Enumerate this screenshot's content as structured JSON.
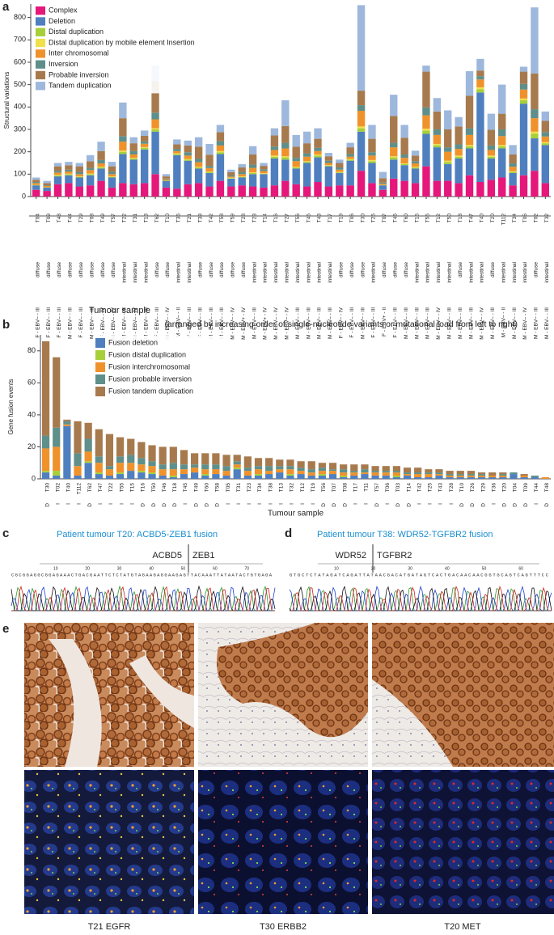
{
  "panel_labels": [
    "a",
    "b",
    "c",
    "d",
    "e"
  ],
  "chart_data": [
    {
      "type": "stacked-bar",
      "y_label": "Structural  variations",
      "x_label": "Tumour sample",
      "note": "(arranged by increasing order of single-nucleotide variants or mutational load from left to right)",
      "categories": [
        "T04",
        "T09",
        "T48",
        "T44",
        "T29",
        "T08",
        "T49",
        "T57",
        "T22",
        "T31",
        "T13",
        "T62",
        "T10",
        "T36",
        "T21",
        "T38",
        "T42",
        "T58",
        "T59",
        "T28",
        "T23",
        "T14",
        "T16",
        "T27",
        "T56",
        "T45",
        "T43",
        "T17",
        "T19",
        "T06",
        "T30",
        "T25",
        "T07",
        "T46",
        "T60",
        "T15",
        "T55",
        "T12",
        "T50",
        "T18",
        "T47",
        "T40",
        "T20",
        "T112",
        "T34",
        "T05",
        "T02",
        "T32"
      ],
      "histology": [
        "diffuse",
        "diffuse",
        "diffuse",
        "diffuse",
        "diffuse",
        "diffuse",
        "diffuse",
        "diffuse",
        "intestinal",
        "intestinal",
        "intestinal",
        "diffuse",
        "diffuse",
        "intestinal",
        "intestinal",
        "diffuse",
        "diffuse",
        "diffuse",
        "diffuse",
        "diffuse",
        "intestinal",
        "intestinal",
        "intestinal",
        "intestinal",
        "intestinal",
        "intestinal",
        "intestinal",
        "intestinal",
        "diffuse",
        "diffuse",
        "diffuse",
        "intestinal",
        "diffuse",
        "diffuse",
        "diffuse",
        "intestinal",
        "intestinal",
        "intestinal",
        "intestinal",
        "diffuse",
        "intestinal",
        "intestinal",
        "diffuse",
        "intestinal",
        "intestinal",
        "intestinal",
        "diffuse",
        "intestinal"
      ],
      "group": [
        "F - EBV– - III",
        "F - EBV– - III",
        "F - EBV– - III",
        "M - EBV– - III",
        "F - EBV– - III",
        "M - EBV– - III",
        "F - EBV– - IV",
        "M - EBV– - IV",
        "M - EBV– - III",
        "M - EBV– - IV",
        "M - EBV– - III",
        "F - EBV– - III",
        "M - EBV– - IV",
        "M - EBV– - II",
        "F - EBV– - III",
        "F - EBV– - III",
        "M - EBV– - III",
        "M - EBV– - III",
        "M - EBV– - IV",
        "M - EBV+ - IV",
        "M - EBV– - III",
        "M - EBV+ - IV",
        "M - EBV– - IV",
        "M - EBV– - IV",
        "M - EBV– - III",
        "M - EBV– - III",
        "M - EBV– - III",
        "M - EBV– - III",
        "F - EBV– - IV",
        "F - EBV– - III",
        "M - EBV– - III",
        "F - EBV– - III",
        "F - EBV+ - II",
        "F - EBV– - III",
        "M - EBV– - III",
        "M - EBV– - III",
        "M - EBV– - III",
        "M - EBV– - IV",
        "M - EBV– - III",
        "M - EBV– - III",
        "M - EBV– - III",
        "M - EBV– - IV",
        "M - EBV– - III",
        "M - EBV– - II",
        "M - EBV– - III",
        "M - EBV– - IV",
        "M - EBV– - III",
        "M - EBV– - III"
      ],
      "series": [
        {
          "name": "Complex",
          "color": "#e5177b",
          "values": [
            30,
            25,
            55,
            60,
            45,
            50,
            70,
            40,
            60,
            55,
            60,
            100,
            40,
            35,
            55,
            60,
            45,
            70,
            45,
            50,
            45,
            40,
            50,
            70,
            55,
            45,
            65,
            45,
            50,
            50,
            115,
            60,
            30,
            80,
            70,
            60,
            135,
            70,
            70,
            60,
            95,
            65,
            75,
            85,
            50,
            95,
            115,
            60
          ]
        },
        {
          "name": "Deletion",
          "color": "#4f7fbf",
          "values": [
            20,
            15,
            35,
            35,
            40,
            45,
            55,
            45,
            130,
            110,
            150,
            190,
            30,
            150,
            105,
            65,
            60,
            120,
            35,
            35,
            55,
            60,
            120,
            95,
            70,
            105,
            110,
            90,
            55,
            110,
            175,
            90,
            20,
            85,
            70,
            65,
            145,
            150,
            75,
            110,
            120,
            400,
            95,
            130,
            55,
            320,
            145,
            170
          ]
        },
        {
          "name": "Distal duplication",
          "color": "#a6cf3a",
          "values": [
            2,
            2,
            5,
            5,
            3,
            5,
            5,
            3,
            10,
            5,
            8,
            10,
            2,
            5,
            5,
            5,
            5,
            8,
            2,
            3,
            5,
            2,
            8,
            10,
            5,
            5,
            8,
            3,
            3,
            5,
            15,
            8,
            2,
            10,
            5,
            5,
            15,
            10,
            10,
            8,
            10,
            15,
            8,
            10,
            5,
            15,
            20,
            8
          ]
        },
        {
          "name": "Distal duplication by mobile element Insertion",
          "color": "#f0e04a",
          "values": [
            0,
            0,
            2,
            2,
            2,
            3,
            3,
            2,
            5,
            3,
            3,
            5,
            0,
            3,
            3,
            3,
            2,
            5,
            2,
            2,
            3,
            2,
            5,
            5,
            3,
            3,
            5,
            2,
            2,
            3,
            8,
            5,
            0,
            5,
            3,
            3,
            8,
            5,
            5,
            5,
            5,
            8,
            5,
            5,
            3,
            8,
            10,
            5
          ]
        },
        {
          "name": "Inter chromosomal",
          "color": "#f0922b",
          "values": [
            8,
            5,
            10,
            10,
            10,
            15,
            15,
            10,
            40,
            15,
            15,
            40,
            5,
            10,
            15,
            20,
            15,
            25,
            5,
            10,
            20,
            10,
            25,
            35,
            25,
            20,
            15,
            10,
            10,
            10,
            70,
            20,
            5,
            40,
            25,
            15,
            60,
            40,
            40,
            30,
            45,
            35,
            25,
            40,
            20,
            40,
            60,
            25
          ]
        },
        {
          "name": "Inversion",
          "color": "#5f8f8a",
          "values": [
            5,
            3,
            8,
            8,
            10,
            10,
            15,
            10,
            25,
            15,
            10,
            30,
            3,
            10,
            15,
            15,
            10,
            20,
            5,
            10,
            15,
            8,
            15,
            25,
            15,
            15,
            15,
            10,
            10,
            12,
            25,
            15,
            5,
            20,
            15,
            10,
            35,
            25,
            20,
            20,
            30,
            15,
            20,
            30,
            15,
            25,
            40,
            20
          ]
        },
        {
          "name": "Probable inversion",
          "color": "#a77a4e",
          "values": [
            10,
            10,
            20,
            20,
            25,
            30,
            40,
            25,
            80,
            35,
            25,
            140,
            10,
            20,
            30,
            55,
            50,
            40,
            15,
            20,
            45,
            15,
            50,
            75,
            50,
            45,
            40,
            20,
            20,
            30,
            65,
            60,
            20,
            120,
            75,
            25,
            160,
            80,
            80,
            80,
            145,
            25,
            70,
            70,
            40,
            55,
            160,
            50
          ]
        },
        {
          "name": "Tandem duplication",
          "color": "#9db8dc",
          "values": [
            10,
            10,
            15,
            15,
            15,
            27,
            42,
            20,
            70,
            27,
            24,
            70,
            10,
            22,
            22,
            42,
            48,
            32,
            11,
            15,
            37,
            13,
            32,
            115,
            52,
            52,
            47,
            15,
            15,
            20,
            382,
            62,
            28,
            95,
            57,
            22,
            27,
            60,
            85,
            42,
            110,
            52,
            72,
            130,
            42,
            22,
            295,
            42
          ]
        }
      ],
      "ylim": [
        0,
        860
      ],
      "yticks": [
        0,
        100,
        200,
        300,
        400,
        500,
        600,
        700,
        800
      ]
    },
    {
      "type": "stacked-bar",
      "y_label": "Gene fusion events",
      "x_label": "Tumour sample",
      "categories": [
        "T30",
        "T02",
        "T40",
        "T112",
        "T62",
        "T47",
        "T22",
        "T55",
        "T15",
        "T16",
        "T50",
        "T46",
        "T18",
        "T45",
        "T49",
        "T60",
        "T58",
        "T05",
        "T31",
        "T23",
        "T34",
        "T38",
        "T13",
        "T32",
        "T12",
        "T19",
        "T56",
        "T07",
        "T08",
        "T17",
        "T11",
        "T57",
        "T06",
        "T03",
        "T14",
        "T42",
        "T25",
        "T43",
        "T28",
        "T10",
        "T26",
        "T29",
        "T36",
        "T20",
        "T04",
        "T09",
        "T44",
        "T48"
      ],
      "histology": [
        "D",
        "I",
        "I",
        "I",
        "D",
        "I",
        "I",
        "I",
        "I",
        "D",
        "D",
        "D",
        "D",
        "I",
        "D",
        "D",
        "D",
        "I",
        "I",
        "I",
        "I",
        "I",
        "I",
        "I",
        "I",
        "I",
        "D",
        "D",
        "D",
        "I",
        "I",
        "D",
        "I",
        "D",
        "D",
        "I",
        "I",
        "I",
        "I",
        "D",
        "D",
        "D",
        "I",
        "D",
        "D",
        "D",
        "I",
        "D"
      ],
      "series": [
        {
          "name": "Fusion deletion",
          "color": "#4f7fbf",
          "values": [
            4,
            2,
            33,
            2,
            10,
            3,
            2,
            3,
            5,
            4,
            3,
            2,
            1,
            3,
            4,
            2,
            3,
            2,
            6,
            2,
            2,
            3,
            4,
            2,
            3,
            2,
            2,
            3,
            1,
            2,
            3,
            2,
            2,
            1,
            2,
            1,
            1,
            2,
            1,
            1,
            1,
            1,
            1,
            1,
            3,
            1,
            1,
            0
          ]
        },
        {
          "name": "Fusion distal duplication",
          "color": "#a6cf3a",
          "values": [
            1,
            3,
            0,
            0,
            1,
            1,
            0,
            1,
            0,
            1,
            1,
            0,
            1,
            0,
            0,
            1,
            0,
            0,
            1,
            0,
            1,
            0,
            0,
            1,
            0,
            0,
            1,
            0,
            1,
            0,
            0,
            0,
            0,
            1,
            0,
            0,
            0,
            0,
            0,
            0,
            0,
            0,
            0,
            0,
            0,
            0,
            0,
            0
          ]
        },
        {
          "name": "Fusion interchromosomal",
          "color": "#f0922b",
          "values": [
            14,
            15,
            1,
            6,
            6,
            6,
            4,
            6,
            5,
            4,
            4,
            4,
            4,
            3,
            3,
            3,
            3,
            3,
            2,
            3,
            3,
            2,
            2,
            3,
            2,
            2,
            2,
            2,
            2,
            2,
            1,
            2,
            2,
            2,
            1,
            2,
            2,
            1,
            1,
            1,
            1,
            1,
            1,
            1,
            0,
            1,
            0,
            1
          ]
        },
        {
          "name": "Fusion probable inversion",
          "color": "#5f8f8a",
          "values": [
            8,
            12,
            2,
            8,
            8,
            4,
            2,
            4,
            5,
            4,
            3,
            3,
            4,
            3,
            2,
            3,
            3,
            3,
            2,
            2,
            2,
            3,
            2,
            2,
            2,
            2,
            2,
            1,
            2,
            1,
            2,
            1,
            1,
            1,
            1,
            1,
            1,
            1,
            1,
            1,
            1,
            1,
            0,
            1,
            1,
            0,
            1,
            0
          ]
        },
        {
          "name": "Fusion tandem duplication",
          "color": "#a77a4e",
          "values": [
            59,
            44,
            1,
            20,
            10,
            17,
            20,
            12,
            10,
            10,
            10,
            11,
            10,
            9,
            7,
            7,
            7,
            7,
            4,
            7,
            5,
            5,
            4,
            4,
            4,
            5,
            3,
            4,
            3,
            4,
            3,
            3,
            3,
            3,
            3,
            3,
            2,
            2,
            2,
            2,
            2,
            1,
            2,
            1,
            0,
            1,
            0,
            0
          ]
        }
      ],
      "ylim": [
        0,
        90
      ],
      "yticks": [
        0,
        20,
        40,
        60,
        80
      ]
    }
  ],
  "chromatograms": [
    {
      "title": "Patient tumour T20: ACBD5-ZEB1 fusion",
      "gene_left": "ACBD5",
      "gene_right": "ZEB1",
      "sequence": "CGCGGAGGCGGAGAAACTGACGAATTCTCTATGTAGAAGAGGAAGAGTTACAAATTATAATACTGTGAGA",
      "positions": [
        10,
        20,
        30,
        40,
        50,
        60,
        70
      ]
    },
    {
      "title": "Patient tumour T38: WDR52-TGFBR2 fusion",
      "gene_left": "WDR52",
      "gene_right": "TGFBR2",
      "sequence": "GTGCTCTATAGATCAGATTATAACGACATGATAGTCACTGACAACAACGGTGCAGTCAGTTTCC",
      "positions": [
        10,
        20,
        30,
        40,
        50,
        60
      ]
    }
  ],
  "images": [
    {
      "caption": "T21 EGFR"
    },
    {
      "caption": "T30 ERBB2"
    },
    {
      "caption": "T20 MET"
    }
  ]
}
